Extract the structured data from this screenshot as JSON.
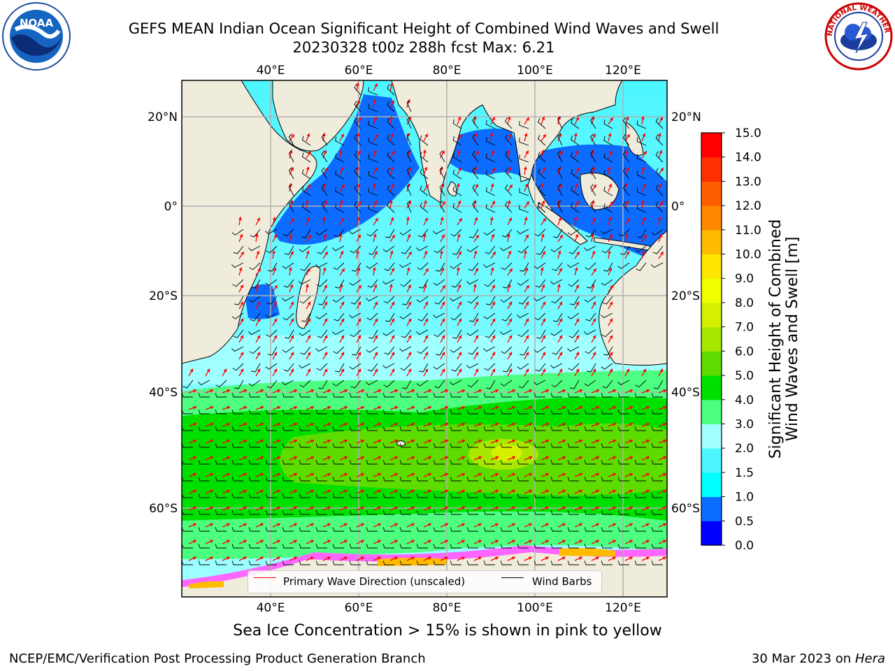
{
  "title": {
    "line1": "GEFS MEAN Indian Ocean Significant Height of Combined Wind Waves and Swell",
    "line2": "20230328 t00z 288h fcst   Max: 6.21"
  },
  "logos": {
    "left": {
      "name": "noaa-logo",
      "text": "NOAA"
    },
    "right": {
      "name": "nws-logo",
      "text": "NATIONAL WEATHER SERVICE"
    }
  },
  "map": {
    "lon_range": [
      20,
      130
    ],
    "lat_range": [
      -73,
      27
    ],
    "lon_ticks": [
      "40°E",
      "60°E",
      "80°E",
      "100°E",
      "120°E"
    ],
    "lon_tick_values": [
      40,
      60,
      80,
      100,
      120
    ],
    "lat_ticks": [
      "20°N",
      "0°",
      "20°S",
      "40°S",
      "60°S"
    ],
    "lat_tick_values": [
      20,
      0,
      -20,
      -40,
      -60
    ],
    "grid": true,
    "land_color": "#efecdc",
    "max_value": 6.21
  },
  "legend": {
    "items": [
      {
        "label": "Primary Wave Direction (unscaled)",
        "color": "#ff0000"
      },
      {
        "label": "Wind Barbs",
        "color": "#000000"
      }
    ]
  },
  "colorbar": {
    "title_line1": "Significant Height of Combined",
    "title_line2": "Wind Waves and Swell [m]",
    "ticks": [
      "0.0",
      "0.5",
      "1.0",
      "1.5",
      "2.0",
      "3.0",
      "4.0",
      "5.0",
      "6.0",
      "7.0",
      "8.0",
      "9.0",
      "10.0",
      "11.0",
      "12.0",
      "13.0",
      "14.0",
      "15.0"
    ],
    "colors": [
      "#0000ff",
      "#0b6cff",
      "#00ffff",
      "#4df6ff",
      "#a0ffff",
      "#4dff80",
      "#00e000",
      "#5cdc00",
      "#a8e800",
      "#d4f000",
      "#f0ff00",
      "#ffe600",
      "#ffbb00",
      "#ff8800",
      "#ff5e00",
      "#ff3000",
      "#ff0000"
    ]
  },
  "caption": "Sea Ice Concentration > 15% is shown in pink to yellow",
  "footer": {
    "left": "NCEP/EMC/Verification Post Processing Product Generation Branch",
    "right_date": "30 Mar 2023 on",
    "right_host": "Hera"
  }
}
